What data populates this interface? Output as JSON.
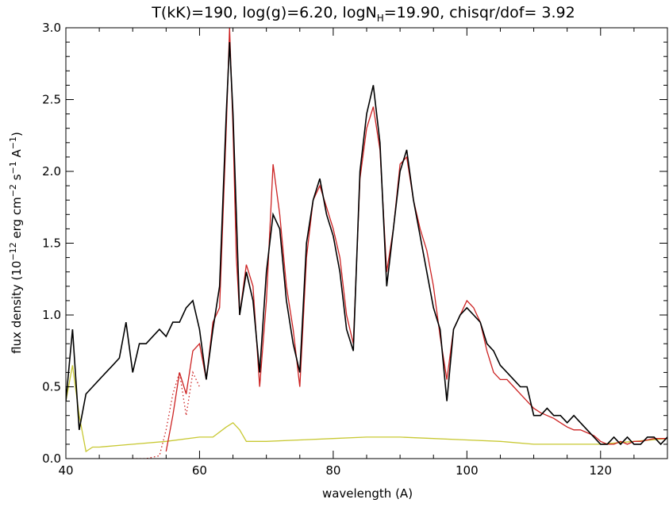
{
  "chart_data": {
    "type": "line",
    "title": "T(kK)=190, log(g)=6.20, logN",
    "title_sub": "H",
    "title_rest": "=19.90, chisqr/dof= 3.92",
    "xlabel": "wavelength (A)",
    "ylabel_parts": [
      "flux density (10",
      "−12",
      " erg cm",
      "−2",
      " s",
      "−1",
      " A",
      "−1",
      ")"
    ],
    "xlim": [
      40,
      130
    ],
    "ylim": [
      0,
      3.0
    ],
    "x_ticks": [
      "40",
      "60",
      "80",
      "100",
      "120"
    ],
    "y_ticks": [
      "0.0",
      "0.5",
      "1.0",
      "1.5",
      "2.0",
      "2.5",
      "3.0"
    ],
    "x_tick_values": [
      40,
      60,
      80,
      100,
      120
    ],
    "y_tick_values": [
      0.0,
      0.5,
      1.0,
      1.5,
      2.0,
      2.5,
      3.0
    ],
    "grid": false,
    "series": [
      {
        "role": "observed",
        "color": "#000000",
        "style": "solid",
        "x": [
          40,
          41,
          42,
          43,
          44,
          45,
          46,
          47,
          48,
          49,
          50,
          51,
          52,
          53,
          54,
          55,
          56,
          57,
          58,
          59,
          60,
          61,
          62,
          63,
          64,
          64.5,
          65,
          65.5,
          66,
          67,
          68,
          69,
          70,
          71,
          72,
          73,
          74,
          75,
          76,
          77,
          78,
          79,
          80,
          81,
          82,
          83,
          84,
          85,
          86,
          87,
          88,
          89,
          90,
          91,
          92,
          93,
          94,
          95,
          96,
          97,
          98,
          99,
          100,
          101,
          102,
          103,
          104,
          105,
          106,
          107,
          108,
          109,
          110,
          111,
          112,
          113,
          114,
          115,
          116,
          117,
          118,
          119,
          120,
          121,
          122,
          123,
          124,
          125,
          126,
          127,
          128,
          129,
          130
        ],
        "y": [
          0.4,
          0.9,
          0.2,
          0.45,
          0.5,
          0.55,
          0.6,
          0.65,
          0.7,
          0.95,
          0.6,
          0.8,
          0.8,
          0.85,
          0.9,
          0.85,
          0.95,
          0.95,
          1.05,
          1.1,
          0.9,
          0.55,
          0.9,
          1.2,
          2.4,
          2.9,
          2.4,
          1.7,
          1.0,
          1.3,
          1.1,
          0.6,
          1.3,
          1.7,
          1.6,
          1.1,
          0.8,
          0.6,
          1.5,
          1.8,
          1.95,
          1.7,
          1.55,
          1.3,
          0.9,
          0.75,
          2.0,
          2.4,
          2.6,
          2.2,
          1.2,
          1.6,
          2.0,
          2.15,
          1.8,
          1.55,
          1.3,
          1.05,
          0.9,
          0.4,
          0.9,
          1.0,
          1.05,
          1.0,
          0.95,
          0.8,
          0.75,
          0.65,
          0.6,
          0.55,
          0.5,
          0.5,
          0.3,
          0.3,
          0.35,
          0.3,
          0.3,
          0.25,
          0.3,
          0.25,
          0.2,
          0.15,
          0.1,
          0.1,
          0.15,
          0.1,
          0.15,
          0.1,
          0.1,
          0.15,
          0.15,
          0.1,
          0.15
        ]
      },
      {
        "role": "model",
        "color": "#cc2222",
        "style": "solid",
        "x": [
          55,
          56,
          57,
          58,
          59,
          60,
          61,
          62,
          63,
          64,
          64.5,
          65,
          65.5,
          66,
          67,
          68,
          69,
          70,
          71,
          72,
          73,
          74,
          75,
          76,
          77,
          78,
          79,
          80,
          81,
          82,
          83,
          84,
          85,
          86,
          87,
          88,
          89,
          90,
          91,
          92,
          93,
          94,
          95,
          96,
          97,
          98,
          99,
          100,
          101,
          102,
          103,
          104,
          105,
          106,
          107,
          108,
          109,
          110,
          111,
          112,
          113,
          114,
          115,
          116,
          117,
          118,
          119,
          120,
          121,
          122,
          123,
          124,
          125,
          126,
          127,
          128,
          129,
          130
        ],
        "y": [
          0.05,
          0.3,
          0.6,
          0.45,
          0.75,
          0.8,
          0.55,
          0.95,
          1.05,
          2.3,
          3.0,
          2.3,
          1.4,
          1.0,
          1.35,
          1.2,
          0.5,
          1.1,
          2.05,
          1.7,
          1.2,
          0.9,
          0.5,
          1.4,
          1.8,
          1.9,
          1.75,
          1.6,
          1.4,
          1.0,
          0.8,
          1.95,
          2.3,
          2.45,
          2.15,
          1.3,
          1.6,
          2.05,
          2.1,
          1.8,
          1.6,
          1.45,
          1.2,
          0.85,
          0.55,
          0.9,
          1.0,
          1.1,
          1.05,
          0.95,
          0.75,
          0.6,
          0.55,
          0.55,
          0.5,
          0.45,
          0.4,
          0.35,
          0.32,
          0.3,
          0.28,
          0.25,
          0.22,
          0.2,
          0.2,
          0.18,
          0.16,
          0.12,
          0.1,
          0.1,
          0.12,
          0.1,
          0.12,
          0.12,
          0.13,
          0.14,
          0.14,
          0.14
        ]
      },
      {
        "role": "model-dotted",
        "color": "#cc2222",
        "style": "dotted",
        "x": [
          50,
          52,
          54,
          55,
          56,
          57,
          58,
          59,
          60
        ],
        "y": [
          0.0,
          0.0,
          0.02,
          0.2,
          0.45,
          0.6,
          0.3,
          0.6,
          0.5
        ]
      },
      {
        "role": "background",
        "color": "#c8c832",
        "style": "solid",
        "x": [
          40,
          41,
          42,
          43,
          44,
          45,
          50,
          55,
          60,
          62,
          64,
          65,
          66,
          67,
          70,
          75,
          80,
          85,
          90,
          95,
          100,
          105,
          110,
          115,
          120,
          125,
          130
        ],
        "y": [
          0.4,
          0.65,
          0.3,
          0.05,
          0.08,
          0.08,
          0.1,
          0.12,
          0.15,
          0.15,
          0.22,
          0.25,
          0.2,
          0.12,
          0.12,
          0.13,
          0.14,
          0.15,
          0.15,
          0.14,
          0.13,
          0.12,
          0.1,
          0.1,
          0.1,
          0.12,
          0.14
        ]
      }
    ]
  }
}
